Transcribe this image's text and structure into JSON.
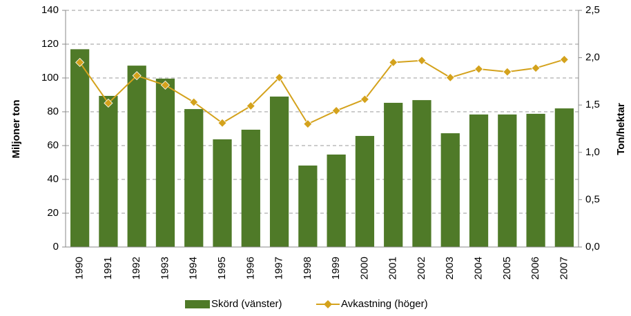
{
  "chart_data": {
    "type": "bar-line",
    "categories": [
      "1990",
      "1991",
      "1992",
      "1993",
      "1994",
      "1995",
      "1996",
      "1997",
      "1998",
      "1999",
      "2000",
      "2001",
      "2002",
      "2003",
      "2004",
      "2005",
      "2006",
      "2007"
    ],
    "series": [
      {
        "name": "Skörd (vänster)",
        "type": "bar",
        "color": "#4f7a28",
        "values": [
          117,
          89.4,
          107.3,
          99.6,
          81.6,
          63.7,
          69.4,
          89,
          48.2,
          54.7,
          65.7,
          85.3,
          86.9,
          67.3,
          78.4,
          78.4,
          78.8,
          82
        ]
      },
      {
        "name": "Avkastning (höger)",
        "type": "line",
        "axis": "y2",
        "color": "#d4a21c",
        "values": [
          1.95,
          1.52,
          1.81,
          1.71,
          1.53,
          1.31,
          1.49,
          1.79,
          1.3,
          1.44,
          1.56,
          1.95,
          1.97,
          1.79,
          1.88,
          1.85,
          1.89,
          1.98
        ]
      }
    ],
    "ylabel": "Miljoner ton",
    "y2label": "Ton/hektar",
    "ylim": [
      0,
      140
    ],
    "yticks": [
      0,
      20,
      40,
      60,
      80,
      100,
      120,
      140
    ],
    "y2lim": [
      0,
      2.5
    ],
    "y2ticks": [
      {
        "value": 0,
        "label": "0,0"
      },
      {
        "value": 0.5,
        "label": "0,5"
      },
      {
        "value": 1,
        "label": "1,0"
      },
      {
        "value": 1.5,
        "label": "1,5"
      },
      {
        "value": 2,
        "label": "2,0"
      },
      {
        "value": 2.5,
        "label": "2,5"
      }
    ],
    "grid": true,
    "legend": "bottom"
  }
}
